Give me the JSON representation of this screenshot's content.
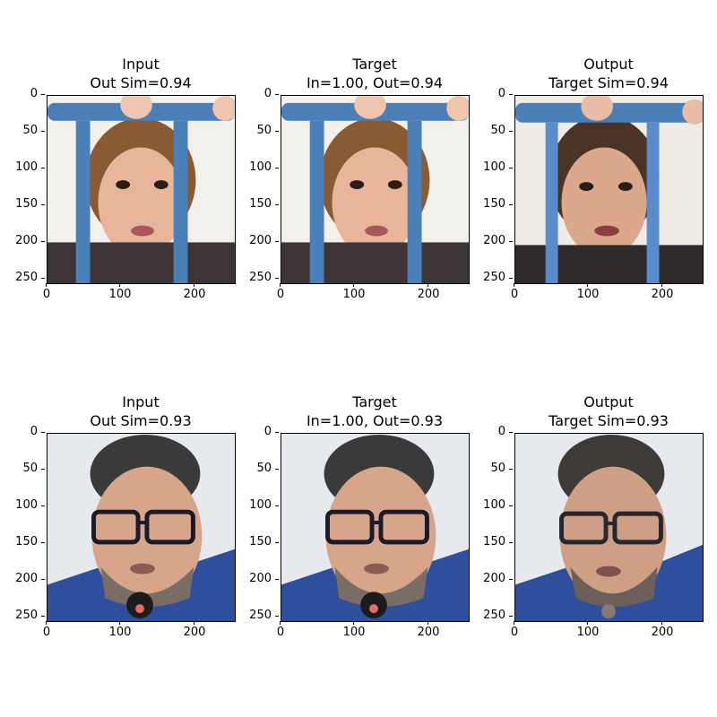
{
  "panels": [
    {
      "title_line1": "Input",
      "title_line2": "Out Sim=0.94",
      "image": "child-behind-blue-bars"
    },
    {
      "title_line1": "Target",
      "title_line2": "In=1.00, Out=0.94",
      "image": "child-behind-blue-bars"
    },
    {
      "title_line1": "Output",
      "title_line2": "Target Sim=0.94",
      "image": "child-behind-blue-bars-generated"
    },
    {
      "title_line1": "Input",
      "title_line2": "Out Sim=0.93",
      "image": "man-with-glasses-and-microphone"
    },
    {
      "title_line1": "Target",
      "title_line2": "In=1.00, Out=0.93",
      "image": "man-with-glasses-and-microphone"
    },
    {
      "title_line1": "Output",
      "title_line2": "Target Sim=0.93",
      "image": "man-with-glasses-generated"
    }
  ],
  "axis": {
    "yticks": [
      "0",
      "50",
      "100",
      "150",
      "200",
      "250"
    ],
    "xticks": [
      "0",
      "100",
      "200"
    ]
  },
  "colors": {
    "bar_blue": "#4a7fb8",
    "skin": "#e8b59a",
    "hair_brown": "#8a5a32",
    "suit_blue": "#2f4f9c",
    "hair_dark": "#3a3a3a",
    "background_light": "#e6e9ee"
  }
}
